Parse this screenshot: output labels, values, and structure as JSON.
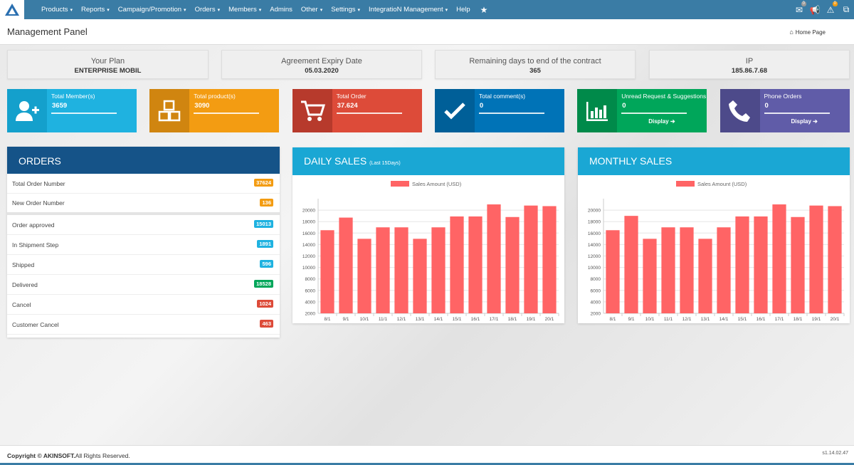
{
  "navbar": {
    "menu": [
      {
        "label": "Products",
        "caret": true
      },
      {
        "label": "Reports",
        "caret": true
      },
      {
        "label": "Campaign/Promotion",
        "caret": true
      },
      {
        "label": "Orders",
        "caret": true
      },
      {
        "label": "Members",
        "caret": true
      },
      {
        "label": "Admins",
        "caret": false
      },
      {
        "label": "Other",
        "caret": true
      },
      {
        "label": "Settings",
        "caret": true
      },
      {
        "label": "IntegratioN Management",
        "caret": true
      },
      {
        "label": "Help",
        "caret": false
      }
    ],
    "caret_glyph": "▾",
    "star_icon": "★",
    "right_icons": [
      {
        "name": "message-icon",
        "glyph": "✉",
        "badge": "0"
      },
      {
        "name": "announcement-icon",
        "glyph": "📢",
        "badge": ""
      },
      {
        "name": "warning-icon",
        "glyph": "⚠",
        "badge": "0"
      },
      {
        "name": "external-link-icon",
        "glyph": "⧉",
        "badge": ""
      }
    ]
  },
  "header": {
    "title": "Management Panel",
    "home_label": "Home Page",
    "home_icon": "⌂"
  },
  "info_boxes": [
    {
      "label": "Your Plan",
      "value": "ENTERPRISE MOBIL"
    },
    {
      "label": "Agreement Expiry Date",
      "value": "05.03.2020"
    },
    {
      "label": "Remaining days to end of the contract",
      "value": "365"
    },
    {
      "label": "IP",
      "value": "185.86.7.68"
    }
  ],
  "tiles": [
    {
      "label": "Total Member(s)",
      "value": "3659",
      "display": "",
      "color": "#1fb2e0",
      "icon_color": "#14a0cc",
      "icon": "add-user-icon"
    },
    {
      "label": "Total product(s)",
      "value": "3090",
      "display": "",
      "color": "#f39c12",
      "icon_color": "#d08510",
      "icon": "boxes-icon"
    },
    {
      "label": "Total Order",
      "value": "37.624",
      "display": "",
      "color": "#dd4b39",
      "icon_color": "#b73a2c",
      "icon": "cart-icon"
    },
    {
      "label": "Total comment(s)",
      "value": "0",
      "display": "",
      "color": "#0073b7",
      "icon_color": "#005f98",
      "icon": "check-icon"
    },
    {
      "label": "Unread Request & Suggestions",
      "value": "0",
      "display": "Display ➔",
      "color": "#00a65a",
      "icon_color": "#008a4a",
      "icon": "bar-chart-icon"
    },
    {
      "label": "Phone Orders",
      "value": "0",
      "display": "Display ➔",
      "color": "#605ca8",
      "icon_color": "#4d4a8a",
      "icon": "phone-icon"
    }
  ],
  "orders": {
    "title": "ORDERS",
    "rows": [
      {
        "label": "Total Order Number",
        "value": "37624",
        "color": "#f39c12",
        "sep": false
      },
      {
        "label": "New Order Number",
        "value": "136",
        "color": "#f39c12",
        "sep": true
      },
      {
        "label": "Order approved",
        "value": "15013",
        "color": "#1fb2e0",
        "sep": false
      },
      {
        "label": "In Shipment Step",
        "value": "1891",
        "color": "#1fb2e0",
        "sep": false
      },
      {
        "label": "Shipped",
        "value": "596",
        "color": "#1fb2e0",
        "sep": false
      },
      {
        "label": "Delivered",
        "value": "18528",
        "color": "#00a65a",
        "sep": false
      },
      {
        "label": "Cancel",
        "value": "1024",
        "color": "#dd4b39",
        "sep": false
      },
      {
        "label": "Customer Cancel",
        "value": "463",
        "color": "#dd4b39",
        "sep": false
      }
    ]
  },
  "daily_sales": {
    "title": "DAILY SALES",
    "subtitle": "(Last 15Days)"
  },
  "monthly_sales": {
    "title": "MONTHLY SALES",
    "subtitle": ""
  },
  "chart_data": [
    {
      "type": "bar",
      "title": "DAILY SALES",
      "legend": "Sales Amount (USD)",
      "legend_position": "top",
      "color": "#ff6465",
      "categories": [
        "8/1",
        "9/1",
        "10/1",
        "11/1",
        "12/1",
        "13/1",
        "14/1",
        "15/1",
        "16/1",
        "17/1",
        "18/1",
        "19/1",
        "20/1"
      ],
      "values": [
        16500,
        18700,
        15000,
        17000,
        17000,
        15000,
        17000,
        18900,
        18900,
        21000,
        18800,
        20800,
        20700
      ],
      "yticks": [
        2000,
        4000,
        6000,
        8000,
        10000,
        12000,
        14000,
        16000,
        18000,
        20000
      ],
      "ylim": [
        0,
        22000
      ],
      "grid": true
    },
    {
      "type": "bar",
      "title": "MONTHLY SALES",
      "legend": "Sales Amount (USD)",
      "legend_position": "top",
      "color": "#ff6465",
      "categories": [
        "8/1",
        "9/1",
        "10/1",
        "11/1",
        "12/1",
        "13/1",
        "14/1",
        "15/1",
        "16/1",
        "17/1",
        "18/1",
        "19/1",
        "20/1"
      ],
      "values": [
        16500,
        19000,
        15000,
        17000,
        17000,
        15000,
        17000,
        18900,
        18900,
        21000,
        18800,
        20800,
        20700
      ],
      "yticks": [
        2000,
        4000,
        6000,
        8000,
        10000,
        12000,
        14000,
        16000,
        18000,
        20000
      ],
      "ylim": [
        0,
        22000
      ],
      "grid": true
    }
  ],
  "footer": {
    "copyright_prefix": "Copyright © ",
    "brand": "AKINSOFT.",
    "rights": "All Rights Reserved.",
    "version": "s1.14.02.47"
  }
}
